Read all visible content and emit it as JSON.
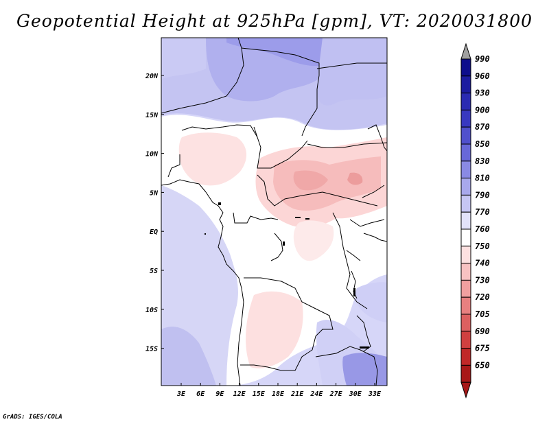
{
  "title": "Geopotential Height at 925hPa [gpm], VT: 2020031800",
  "footer": "GrADS: IGES/COLA",
  "map": {
    "lat_labels": [
      "20N",
      "15N",
      "10N",
      "5N",
      "EQ",
      "5S",
      "10S",
      "15S"
    ],
    "lon_labels": [
      "3E",
      "6E",
      "9E",
      "12E",
      "15E",
      "18E",
      "21E",
      "24E",
      "27E",
      "30E",
      "33E"
    ]
  },
  "colorbar": {
    "levels": [
      "990",
      "960",
      "930",
      "900",
      "870",
      "850",
      "830",
      "810",
      "790",
      "770",
      "760",
      "750",
      "740",
      "730",
      "720",
      "705",
      "690",
      "675",
      "650"
    ],
    "colors": [
      "#0e0e8c",
      "#1c1ca0",
      "#2a2ab2",
      "#3838c0",
      "#5050cc",
      "#6868d8",
      "#8a8ae4",
      "#a8a8ec",
      "#c6c6f4",
      "#e2e2fa",
      "#ffffff",
      "#fde0e0",
      "#f8c2c2",
      "#f0a0a0",
      "#e88080",
      "#dc6060",
      "#d04040",
      "#c02828",
      "#a81818"
    ],
    "top_color": "#a0a0a0",
    "bottom_color": "#a81818"
  }
}
